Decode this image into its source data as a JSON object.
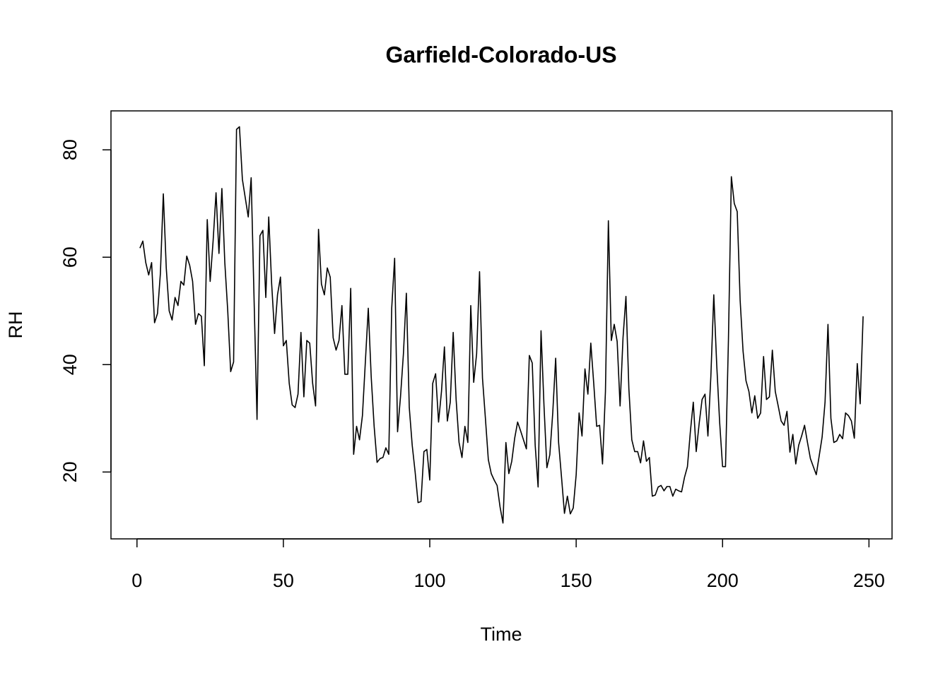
{
  "chart_data": {
    "type": "line",
    "title": "Garfield-Colorado-US",
    "x_label": "Time",
    "y_label": "RH",
    "x": [
      1,
      2,
      3,
      4,
      5,
      6,
      7,
      8,
      9,
      10,
      11,
      12,
      13,
      14,
      15,
      16,
      17,
      18,
      19,
      20,
      21,
      22,
      23,
      24,
      25,
      26,
      27,
      28,
      29,
      30,
      31,
      32,
      33,
      34,
      35,
      36,
      37,
      38,
      39,
      40,
      41,
      42,
      43,
      44,
      45,
      46,
      47,
      48,
      49,
      50,
      51,
      52,
      53,
      54,
      55,
      56,
      57,
      58,
      59,
      60,
      61,
      62,
      63,
      64,
      65,
      66,
      67,
      68,
      69,
      70,
      71,
      72,
      73,
      74,
      75,
      76,
      77,
      78,
      79,
      80,
      81,
      82,
      83,
      84,
      85,
      86,
      87,
      88,
      89,
      90,
      91,
      92,
      93,
      94,
      95,
      96,
      97,
      98,
      99,
      100,
      101,
      102,
      103,
      104,
      105,
      106,
      107,
      108,
      109,
      110,
      111,
      112,
      113,
      114,
      115,
      116,
      117,
      118,
      119,
      120,
      121,
      122,
      123,
      124,
      125,
      126,
      127,
      128,
      129,
      130,
      131,
      132,
      133,
      134,
      135,
      136,
      137,
      138,
      139,
      140,
      141,
      142,
      143,
      144,
      145,
      146,
      147,
      148,
      149,
      150,
      151,
      152,
      153,
      154,
      155,
      156,
      157,
      158,
      159,
      160,
      161,
      162,
      163,
      164,
      165,
      166,
      167,
      168,
      169,
      170,
      171,
      172,
      173,
      174,
      175,
      176,
      177,
      178,
      179,
      180,
      181,
      182,
      183,
      184,
      185,
      186,
      187,
      188,
      189,
      190,
      191,
      192,
      193,
      194,
      195,
      196,
      197,
      198,
      199,
      200,
      201,
      202,
      203,
      204,
      205,
      206,
      207,
      208,
      209,
      210,
      211,
      212,
      213,
      214,
      215,
      216,
      217,
      218,
      219,
      220,
      221,
      222,
      223,
      224,
      225,
      226,
      227,
      228,
      229,
      230,
      231,
      232,
      233,
      234,
      235,
      236,
      237,
      238,
      239,
      240,
      241,
      242,
      243,
      244,
      245,
      246,
      247,
      248
    ],
    "values": [
      61.7,
      63,
      59,
      56.7,
      59,
      47.8,
      49.5,
      57,
      71.8,
      58,
      50,
      48.3,
      52.5,
      51,
      55.5,
      54.8,
      60.2,
      58.5,
      55.5,
      47.5,
      49.5,
      49,
      39.8,
      67,
      55.5,
      63,
      72,
      60.7,
      72.8,
      59,
      50,
      38.7,
      40.5,
      83.8,
      84.3,
      74.5,
      71,
      67.5,
      74.8,
      52,
      29.8,
      64,
      65,
      52.5,
      67.5,
      55,
      45.8,
      53,
      56.3,
      43.5,
      44.5,
      36.5,
      32.5,
      32,
      34.5,
      46,
      34,
      44.5,
      44,
      36.5,
      32.3,
      65.2,
      55,
      53,
      58,
      56.3,
      45,
      42.7,
      44.5,
      51,
      38.2,
      38.2,
      54.2,
      23.3,
      28.5,
      26,
      30.5,
      40.5,
      50.5,
      37.7,
      28.5,
      21.8,
      22.5,
      22.7,
      24.5,
      23.3,
      50.5,
      59.8,
      27.5,
      34,
      42,
      53.3,
      32,
      25,
      20,
      14.3,
      14.5,
      23.8,
      24.2,
      18.5,
      36.5,
      38.3,
      29.3,
      35,
      43.3,
      29.5,
      33,
      46,
      33.5,
      25.5,
      22.7,
      28.5,
      25.5,
      51,
      36.7,
      42,
      57.3,
      37.5,
      30,
      22.3,
      19.7,
      18.5,
      17.5,
      13.5,
      10.5,
      25.5,
      19.7,
      22,
      26.3,
      29.3,
      27.7,
      26,
      24.3,
      41.7,
      40.3,
      25,
      17.2,
      46.3,
      32.5,
      20.8,
      23.2,
      31,
      41.2,
      25.5,
      19,
      12.3,
      15.5,
      12.2,
      13.3,
      19.5,
      31,
      26.7,
      39.2,
      34.5,
      44,
      36.5,
      28.5,
      28.7,
      21.5,
      35,
      66.8,
      44.5,
      47.5,
      44.3,
      32.3,
      45,
      52.7,
      35.5,
      26,
      23.8,
      23.8,
      21.7,
      25.8,
      22,
      22.7,
      15.5,
      15.7,
      17.2,
      17.5,
      16.5,
      17.3,
      17.3,
      15.5,
      16.8,
      16.5,
      16.3,
      19,
      21,
      27.5,
      33,
      23.8,
      29,
      33.5,
      34.5,
      26.7,
      37.8,
      53,
      40,
      29.3,
      21,
      21,
      44.5,
      75,
      70,
      68.5,
      52,
      42.5,
      37,
      35,
      31,
      34.2,
      30,
      31,
      41.5,
      33.5,
      34,
      42.7,
      35,
      32.3,
      29.5,
      28.7,
      31.3,
      23.7,
      27,
      21.5,
      25,
      26.7,
      28.7,
      25.5,
      22.5,
      21,
      19.5,
      23,
      26.5,
      33,
      47.5,
      30,
      25.5,
      25.8,
      27,
      26.2,
      31,
      30.5,
      29.5,
      26.3,
      40.2,
      32.7,
      49
    ],
    "color": "#000000",
    "xlim": [
      -8.88,
      257.88
    ],
    "ylim": [
      7.55,
      87.25
    ],
    "xticks": [
      0,
      50,
      100,
      150,
      200,
      250
    ],
    "yticks": [
      20,
      40,
      60,
      80
    ],
    "grid": false
  }
}
